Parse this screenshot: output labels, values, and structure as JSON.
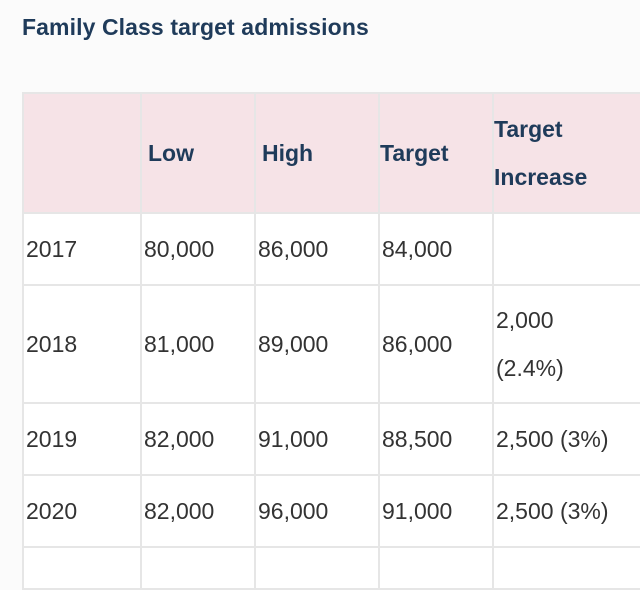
{
  "title": "Family Class target admissions",
  "table": {
    "headers": [
      "",
      "Low",
      "High",
      "Target",
      "Target Increase"
    ],
    "header_increase_lines": [
      "Target",
      "Increase"
    ],
    "rows": [
      {
        "year": "2017",
        "low": "80,000",
        "high": "86,000",
        "target": "84,000",
        "increase": ""
      },
      {
        "year": "2018",
        "low": "81,000",
        "high": "89,000",
        "target": "86,000",
        "increase_line1": "2,000",
        "increase_line2": "(2.4%)"
      },
      {
        "year": "2019",
        "low": "82,000",
        "high": "91,000",
        "target": "88,500",
        "increase": "2,500 (3%)"
      },
      {
        "year": "2020",
        "low": "82,000",
        "high": "96,000",
        "target": "91,000",
        "increase": "2,500 (3%)"
      }
    ]
  }
}
